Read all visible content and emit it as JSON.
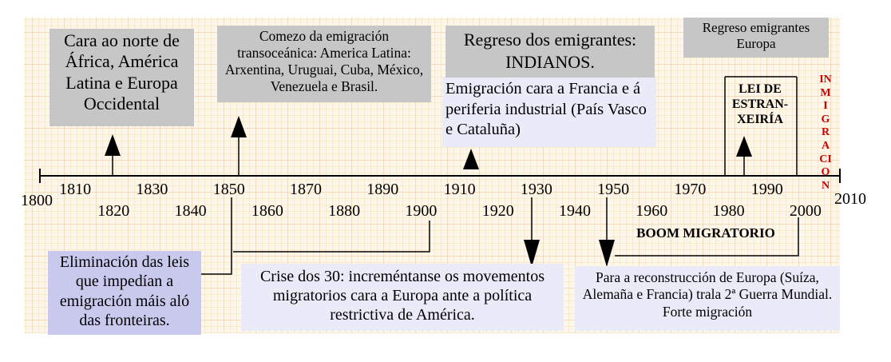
{
  "timeline": {
    "start": 1800,
    "end": 2010,
    "upper_years": [
      1810,
      1830,
      1850,
      1870,
      1890,
      1910,
      1930,
      1950,
      1970,
      1990
    ],
    "lower_years": [
      1800,
      1820,
      1840,
      1860,
      1880,
      1900,
      1920,
      1940,
      1960,
      1980,
      2000,
      2010
    ]
  },
  "boxes": {
    "north_africa": "Cara ao norte de África, América Latina e Europa Occidental",
    "transoceanic": "Comezo da emigración transoceánica: America Latina: Arxentina, Uruguai, Cuba, México, Venezuela e Brasil.",
    "indianos_line1": "Regreso dos emigrantes:",
    "indianos_line2": "INDIANOS.",
    "france": "Emigración cara a Francia e á periferia industrial (País Vasco e Cataluña)",
    "return_europe": "Regreso emigrantes Europa",
    "lei": "LEI DE ESTRAN-XEIRÍA",
    "inmigracion": "INMIGRACION",
    "eliminacion": "Eliminación das leis que impedían a emigración máis aló das fronteiras.",
    "crise": "Crise dos 30: increméntanse os movementos migratorios cara a Europa ante a política restrictiva de América.",
    "boom": "BOOM MIGRATORIO",
    "reconstruccion": "Para a reconstrucción de Europa (Suíza, Alemaña e Francia) trala 2ª Guerra Mundial. Forte migración"
  },
  "colors": {
    "grid_fine": "#f3dcb8",
    "grid_major": "#e9c391",
    "gray_box": "#c6c6c6",
    "lavender_box": "#eaeaf8",
    "lavender_dark": "#c9c9ee",
    "accent_red": "#cc0000"
  }
}
